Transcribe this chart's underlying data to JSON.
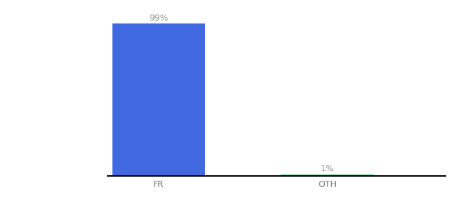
{
  "categories": [
    "FR",
    "OTH"
  ],
  "values": [
    99,
    1
  ],
  "bar_colors": [
    "#4169e1",
    "#22c55e"
  ],
  "labels": [
    "99%",
    "1%"
  ],
  "background_color": "#ffffff",
  "ylim": [
    0,
    105
  ],
  "bar_width": 0.55,
  "label_fontsize": 9,
  "tick_fontsize": 9,
  "label_color": "#999999",
  "tick_color": "#777777",
  "axis_line_color": "#000000",
  "xlim": [
    -0.3,
    1.7
  ]
}
